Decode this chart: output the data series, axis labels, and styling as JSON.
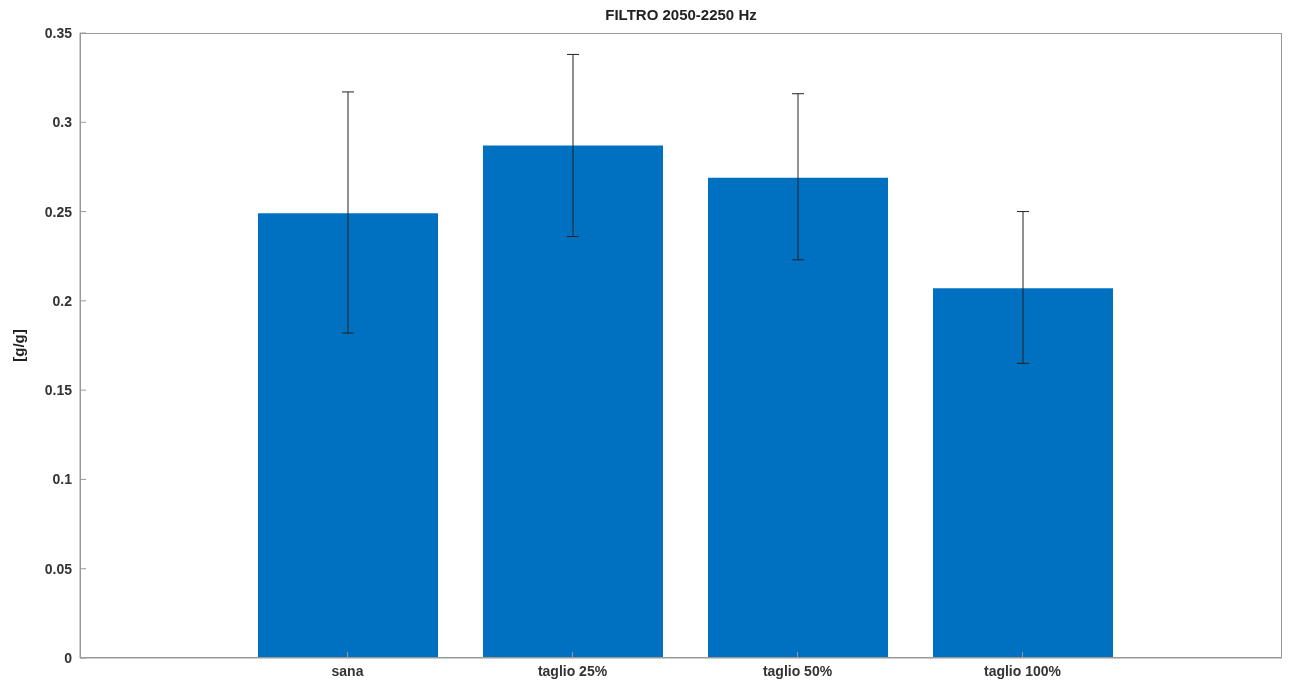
{
  "chart_data": {
    "type": "bar",
    "title": "FILTRO 2050-2250 Hz",
    "ylabel": "[g/g]",
    "categories": [
      "sana",
      "taglio 25%",
      "taglio 50%",
      "taglio 100%"
    ],
    "values": [
      0.249,
      0.287,
      0.269,
      0.207
    ],
    "errors": [
      [
        0.182,
        0.317
      ],
      [
        0.236,
        0.338
      ],
      [
        0.223,
        0.316
      ],
      [
        0.165,
        0.25
      ]
    ],
    "color": "#0070c0",
    "ylim": [
      0,
      0.35
    ],
    "yticks": [
      0,
      0.05,
      0.1,
      0.15,
      0.2,
      0.25,
      0.3,
      0.35
    ],
    "grid": false
  }
}
